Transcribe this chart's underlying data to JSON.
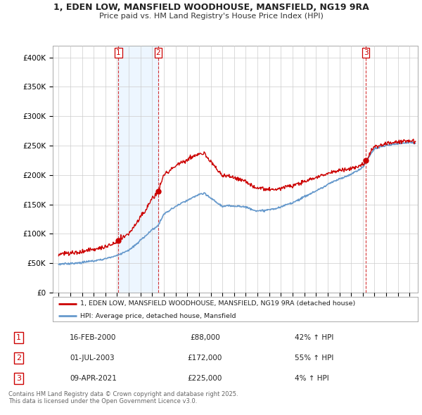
{
  "title": "1, EDEN LOW, MANSFIELD WOODHOUSE, MANSFIELD, NG19 9RA",
  "subtitle": "Price paid vs. HM Land Registry's House Price Index (HPI)",
  "property_line_label": "1, EDEN LOW, MANSFIELD WOODHOUSE, MANSFIELD, NG19 9RA (detached house)",
  "hpi_line_label": "HPI: Average price, detached house, Mansfield",
  "sales": [
    {
      "num": 1,
      "date_label": "16-FEB-2000",
      "date_x": 2000.12,
      "price": 88000,
      "pct": "42%",
      "dir": "↑"
    },
    {
      "num": 2,
      "date_label": "01-JUL-2003",
      "date_x": 2003.5,
      "price": 172000,
      "pct": "55%",
      "dir": "↑"
    },
    {
      "num": 3,
      "date_label": "09-APR-2021",
      "date_x": 2021.27,
      "price": 225000,
      "pct": "4%",
      "dir": "↑"
    }
  ],
  "footer": "Contains HM Land Registry data © Crown copyright and database right 2025.\nThis data is licensed under the Open Government Licence v3.0.",
  "ylim": [
    0,
    420000
  ],
  "xlim": [
    1994.5,
    2025.7
  ],
  "property_color": "#cc0000",
  "hpi_color": "#6699cc",
  "hpi_fill_color": "#ddeeff",
  "sale_marker_color": "#cc0000",
  "vline_color": "#cc0000",
  "bg_color": "#ffffff",
  "grid_color": "#cccccc",
  "shade_color": "#ddeeff"
}
